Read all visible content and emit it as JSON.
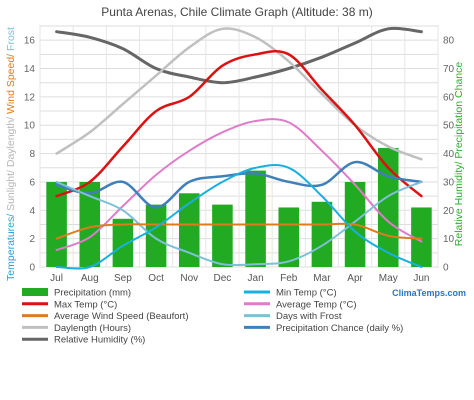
{
  "chart_data": {
    "type": "line",
    "title": "Punta Arenas, Chile Climate Graph (Altitude: 38 m)",
    "ylabel_left_segments": [
      {
        "text": "Temp",
        "color": "#2aa0d0"
      },
      {
        "text": "eratures/ ",
        "color": "#2aa0d0"
      },
      {
        "text": "Sunlight/ ",
        "color": "#b5b5b5"
      },
      {
        "text": "Daylength/ ",
        "color": "#b5b5b5"
      },
      {
        "text": "Wind Speed/ ",
        "color": "#e07b1d"
      },
      {
        "text": "Frost",
        "color": "#7fc0d8"
      }
    ],
    "ylabel_right_segments": [
      {
        "text": "Relative Humidity/ ",
        "color": "#33aa33"
      },
      {
        "text": "Precipitation Chance",
        "color": "#33aa33"
      }
    ],
    "categories": [
      "Jul",
      "Aug",
      "Sep",
      "Oct",
      "Nov",
      "Dec",
      "Jan",
      "Feb",
      "Mar",
      "Apr",
      "May",
      "Jun"
    ],
    "left_axis": {
      "min": 0,
      "max": 17,
      "ticks": [
        "0",
        "2",
        "4",
        "6",
        "8",
        "10",
        "12",
        "14",
        "16"
      ]
    },
    "right_axis": {
      "min": 0,
      "max": 85,
      "ticks": [
        "0",
        "10",
        "20",
        "30",
        "40",
        "50",
        "60",
        "70",
        "80"
      ]
    },
    "grid": true,
    "bars": {
      "name": "Precipitation (mm)",
      "color": "#22aa22",
      "axis": "right",
      "values": [
        30,
        30,
        17,
        22,
        26,
        22,
        34,
        21,
        23,
        30,
        42,
        21
      ]
    },
    "series": [
      {
        "name": "Relative Humidity (%)",
        "color": "#666666",
        "axis": "right",
        "width": 3,
        "values": [
          83,
          81,
          77,
          70,
          67,
          65,
          67,
          70,
          74,
          79,
          84,
          83
        ]
      },
      {
        "name": "Daylength (Hours)",
        "color": "#c0c0c0",
        "axis": "left",
        "width": 2.5,
        "values": [
          8,
          9.5,
          11.5,
          13.5,
          15.5,
          16.8,
          16.2,
          14.5,
          12.2,
          10,
          8.5,
          7.6
        ]
      },
      {
        "name": "Max Temp (°C)",
        "color": "#dd1111",
        "axis": "left",
        "width": 2.5,
        "values": [
          5,
          6,
          8.5,
          11,
          12,
          14.2,
          15,
          15,
          12.5,
          10,
          7,
          5
        ]
      },
      {
        "name": "Average Temp (°C)",
        "color": "#e07acb",
        "axis": "left",
        "width": 2,
        "values": [
          1.2,
          2.1,
          4.3,
          6.5,
          8.2,
          9.5,
          10.3,
          10.2,
          8.2,
          5.8,
          3.2,
          1.8
        ]
      },
      {
        "name": "Precipitation Chance (daily %)",
        "color": "#4080b8",
        "axis": "right",
        "width": 2.5,
        "values": [
          29,
          26,
          30,
          21,
          30,
          32,
          33,
          30,
          29,
          37,
          32,
          30
        ]
      },
      {
        "name": "Days with Frost",
        "color": "#7fc0d8",
        "axis": "left",
        "width": 2,
        "values": [
          6,
          5,
          4,
          2,
          1,
          0.2,
          0.2,
          0.4,
          1.5,
          3.2,
          5,
          6
        ]
      },
      {
        "name": "Average Wind Speed (Beaufort)",
        "color": "#e07b1d",
        "axis": "left",
        "width": 2,
        "values": [
          2,
          2.8,
          3,
          3,
          3,
          3,
          3,
          3,
          3,
          3,
          2.2,
          2
        ]
      },
      {
        "name": "Min Temp (°C)",
        "color": "#18b0e0",
        "axis": "left",
        "width": 2,
        "values": [
          0,
          0,
          1.5,
          2.8,
          4.5,
          6,
          7,
          7,
          5,
          2.5,
          1,
          0
        ]
      }
    ]
  },
  "legend": [
    {
      "label": "Precipitation (mm)",
      "color": "#22aa22",
      "kind": "bar"
    },
    {
      "label": "Min Temp (°C)",
      "color": "#18b0e0",
      "kind": "line"
    },
    {
      "label": "Max Temp (°C)",
      "color": "#dd1111",
      "kind": "line"
    },
    {
      "label": "Average Temp (°C)",
      "color": "#e07acb",
      "kind": "line"
    },
    {
      "label": "Average Wind Speed (Beaufort)",
      "color": "#e07b1d",
      "kind": "line"
    },
    {
      "label": "Days with Frost",
      "color": "#7fc0d8",
      "kind": "line"
    },
    {
      "label": "Daylength (Hours)",
      "color": "#c0c0c0",
      "kind": "line"
    },
    {
      "label": "Precipitation Chance (daily %)",
      "color": "#4080b8",
      "kind": "line"
    },
    {
      "label": "Relative Humidity (%)",
      "color": "#666666",
      "kind": "line"
    }
  ],
  "brand": "ClimaTemps.com"
}
